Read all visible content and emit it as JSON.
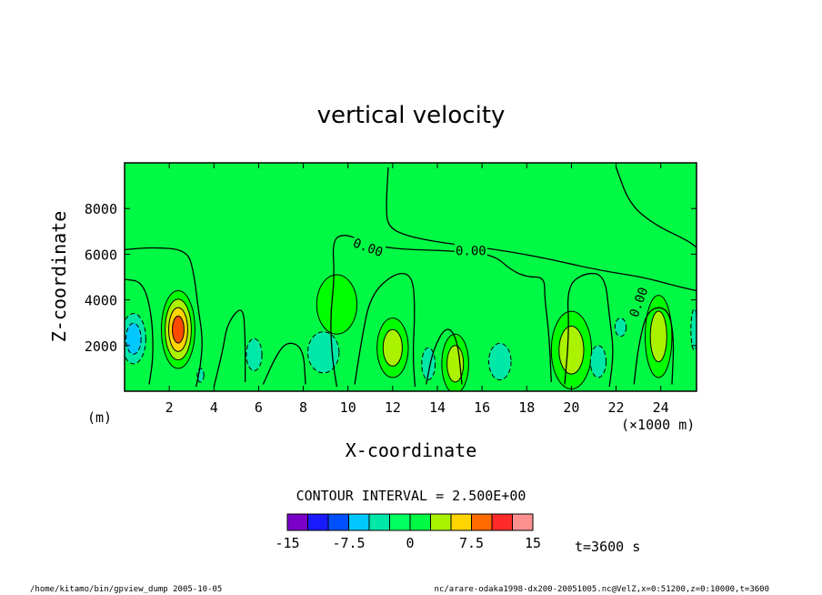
{
  "footer": {
    "left": "/home/kitamo/bin/gpview_dump  2005-10-05",
    "right": "nc/arare-odaka1998-dx200-20051005.nc@VelZ,x=0:51200,z=0:10000,t=3600"
  },
  "time_label": "t=3600 s",
  "contour_interval_label": "CONTOUR INTERVAL = 2.500E+00",
  "colors": {
    "background_fill": "#00f944",
    "frame": "#000000"
  },
  "chart_data": {
    "type": "heatmap",
    "title": "vertical velocity",
    "xlabel": "X-coordinate",
    "ylabel": "Z-coordinate",
    "x_unit_label": "(×1000 m)",
    "y_unit_label": "(m)",
    "xlim": [
      0,
      25.6
    ],
    "ylim": [
      0,
      10000
    ],
    "x_ticks": [
      2,
      4,
      6,
      8,
      10,
      12,
      14,
      16,
      18,
      20,
      22,
      24
    ],
    "x_tick_labels": [
      "2",
      "4",
      "6",
      "8",
      "10",
      "12",
      "14",
      "16",
      "18",
      "20",
      "22",
      "24"
    ],
    "y_ticks": [
      2000,
      4000,
      6000,
      8000
    ],
    "y_tick_labels": [
      "2000",
      "4000",
      "6000",
      "8000"
    ],
    "contour_labels": [
      {
        "text": "0.00",
        "x": 10.9,
        "z": 6300
      },
      {
        "text": "0.00",
        "x": 15.5,
        "z": 6150
      },
      {
        "text": "0.00",
        "x": 23.0,
        "z": 3900
      }
    ],
    "contour_lines": [
      {
        "level": 0,
        "points": [
          [
            0,
            6200
          ],
          [
            1.2,
            6300
          ],
          [
            2.8,
            6200
          ],
          [
            3.1,
            5200
          ],
          [
            3.3,
            3600
          ],
          [
            3.5,
            2300
          ],
          [
            3.4,
            1100
          ],
          [
            3.2,
            200
          ]
        ]
      },
      {
        "level": 0,
        "points": [
          [
            0,
            4900
          ],
          [
            0.8,
            4800
          ],
          [
            1.2,
            3500
          ],
          [
            1.3,
            1600
          ],
          [
            1.1,
            300
          ]
        ]
      },
      {
        "level": 0,
        "points": [
          [
            9.5,
            200
          ],
          [
            9.3,
            1400
          ],
          [
            9.2,
            3200
          ],
          [
            9.4,
            5000
          ],
          [
            9.3,
            6600
          ],
          [
            9.8,
            6900
          ],
          [
            10.6,
            6600
          ],
          [
            11.6,
            6300
          ],
          [
            12.8,
            6200
          ],
          [
            14.5,
            6150
          ],
          [
            16.5,
            6000
          ],
          [
            17.3,
            5300
          ],
          [
            18.0,
            5000
          ],
          [
            18.8,
            5000
          ],
          [
            18.8,
            4100
          ],
          [
            19.0,
            2500
          ],
          [
            19.1,
            400
          ]
        ]
      },
      {
        "level": 0,
        "points": [
          [
            11.8,
            9800
          ],
          [
            11.7,
            8000
          ],
          [
            11.8,
            7200
          ],
          [
            12.6,
            6800
          ],
          [
            14.2,
            6500
          ],
          [
            16.0,
            6300
          ],
          [
            18.5,
            5900
          ],
          [
            21.2,
            5300
          ],
          [
            23.2,
            5000
          ],
          [
            24.7,
            4600
          ],
          [
            25.6,
            4400
          ]
        ]
      },
      {
        "level": 0,
        "points": [
          [
            22.0,
            9800
          ],
          [
            22.6,
            8200
          ],
          [
            23.7,
            7300
          ],
          [
            25.2,
            6600
          ],
          [
            25.6,
            6300
          ]
        ]
      },
      {
        "level": 0,
        "points": [
          [
            10.3,
            300
          ],
          [
            10.6,
            2200
          ],
          [
            11.0,
            4200
          ],
          [
            12.1,
            5200
          ],
          [
            12.9,
            5100
          ],
          [
            13.0,
            3500
          ],
          [
            12.9,
            1600
          ],
          [
            13.0,
            200
          ]
        ]
      },
      {
        "level": 0,
        "points": [
          [
            19.7,
            300
          ],
          [
            19.9,
            2600
          ],
          [
            19.8,
            4600
          ],
          [
            20.6,
            5200
          ],
          [
            21.5,
            5100
          ],
          [
            21.7,
            3300
          ],
          [
            21.9,
            1700
          ],
          [
            21.7,
            200
          ]
        ]
      },
      {
        "level": 0,
        "points": [
          [
            4.0,
            200
          ],
          [
            4.4,
            1800
          ],
          [
            4.6,
            3000
          ],
          [
            5.3,
            3800
          ],
          [
            5.4,
            2400
          ],
          [
            5.4,
            400
          ]
        ]
      },
      {
        "level": 0,
        "points": [
          [
            6.2,
            300
          ],
          [
            6.8,
            1600
          ],
          [
            7.3,
            2200
          ],
          [
            8.0,
            1900
          ],
          [
            8.1,
            300
          ]
        ]
      },
      {
        "level": 0,
        "points": [
          [
            13.5,
            300
          ],
          [
            13.8,
            1800
          ],
          [
            14.4,
            2900
          ],
          [
            14.9,
            2300
          ],
          [
            15.1,
            300
          ]
        ]
      },
      {
        "level": 0,
        "points": [
          [
            22.8,
            300
          ],
          [
            23.0,
            2000
          ],
          [
            23.4,
            3600
          ],
          [
            24.3,
            3700
          ],
          [
            24.6,
            2400
          ],
          [
            24.5,
            300
          ]
        ]
      }
    ],
    "regions": [
      {
        "name": "positive-max-x2.4",
        "x": 2.4,
        "z": 2700,
        "rx": 0.75,
        "rz": 1700,
        "levels": [
          "#00ff00",
          "#aaf200",
          "#ffd500",
          "#ff4a00"
        ]
      },
      {
        "name": "negative-x0.4",
        "x": 0.4,
        "z": 2300,
        "rx": 0.55,
        "rz": 1100,
        "levels": [
          "#00e8a8",
          "#00c8ff"
        ]
      },
      {
        "name": "positive-x9.5",
        "x": 9.5,
        "z": 3800,
        "rx": 0.9,
        "rz": 1300,
        "levels": [
          "#00ff00"
        ]
      },
      {
        "name": "positive-x12",
        "x": 12.0,
        "z": 1900,
        "rx": 0.7,
        "rz": 1300,
        "levels": [
          "#00ff00",
          "#aaf200"
        ]
      },
      {
        "name": "positive-x15",
        "x": 14.8,
        "z": 1200,
        "rx": 0.6,
        "rz": 1300,
        "levels": [
          "#00ff00",
          "#aaf200"
        ]
      },
      {
        "name": "positive-x20",
        "x": 20.0,
        "z": 1800,
        "rx": 0.9,
        "rz": 1700,
        "levels": [
          "#00ff00",
          "#aaf200"
        ]
      },
      {
        "name": "positive-x23.9",
        "x": 23.9,
        "z": 2400,
        "rx": 0.6,
        "rz": 1800,
        "levels": [
          "#00ff00",
          "#aaf200"
        ]
      },
      {
        "name": "negative-x5.8",
        "x": 5.8,
        "z": 1600,
        "rx": 0.35,
        "rz": 700,
        "levels": [
          "#00e8a8"
        ]
      },
      {
        "name": "negative-x8.9",
        "x": 8.9,
        "z": 1700,
        "rx": 0.7,
        "rz": 900,
        "levels": [
          "#00e8a8"
        ]
      },
      {
        "name": "negative-x13.6",
        "x": 13.6,
        "z": 1200,
        "rx": 0.3,
        "rz": 700,
        "levels": [
          "#00e8a8"
        ]
      },
      {
        "name": "negative-x16.8",
        "x": 16.8,
        "z": 1300,
        "rx": 0.5,
        "rz": 800,
        "levels": [
          "#00e8a8"
        ]
      },
      {
        "name": "negative-x21.2",
        "x": 21.2,
        "z": 1300,
        "rx": 0.35,
        "rz": 700,
        "levels": [
          "#00e8a8"
        ]
      },
      {
        "name": "negative-x22.2",
        "x": 22.2,
        "z": 2800,
        "rx": 0.25,
        "rz": 400,
        "levels": [
          "#00e8a8"
        ]
      },
      {
        "name": "negative-x3.4",
        "x": 3.4,
        "z": 700,
        "rx": 0.15,
        "rz": 300,
        "levels": [
          "#00e8a8"
        ]
      },
      {
        "name": "negative-x25.5",
        "x": 25.5,
        "z": 2700,
        "rx": 0.15,
        "rz": 900,
        "levels": [
          "#00e8a8"
        ]
      }
    ],
    "colorbar": {
      "colors": [
        "#7a00c8",
        "#1a1aff",
        "#0050ff",
        "#00c8ff",
        "#00e8a8",
        "#00ff60",
        "#00f944",
        "#aaf200",
        "#ffd500",
        "#ff6a00",
        "#ff2a2a",
        "#ff9090"
      ],
      "levels": [
        -15,
        15
      ],
      "tick_labels": [
        "-15",
        "-7.5",
        "0",
        "7.5",
        "15"
      ],
      "tick_positions": [
        0,
        3,
        6,
        9,
        12
      ]
    }
  }
}
